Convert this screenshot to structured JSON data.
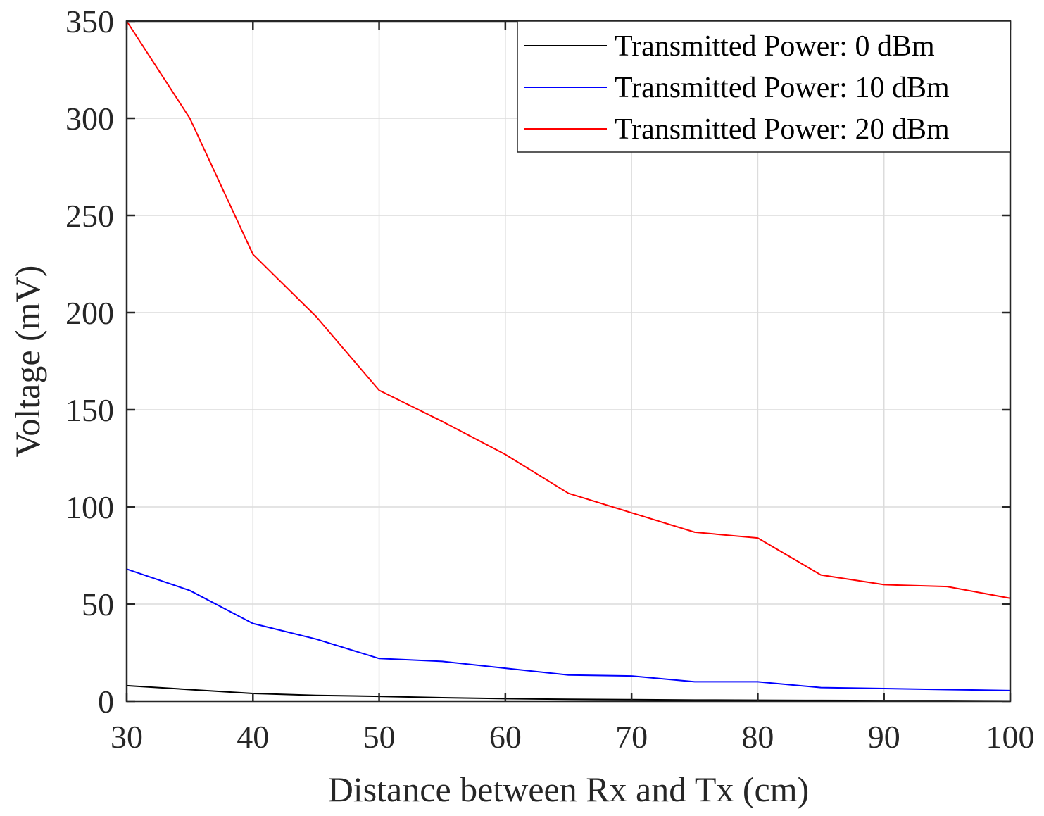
{
  "chart_data": {
    "type": "line",
    "title": "",
    "xlabel": "Distance between Rx and Tx (cm)",
    "ylabel": "Voltage (mV)",
    "xlim": [
      30,
      100
    ],
    "ylim": [
      0,
      350
    ],
    "xticks": [
      30,
      40,
      50,
      60,
      70,
      80,
      90,
      100
    ],
    "yticks": [
      0,
      50,
      100,
      150,
      200,
      250,
      300,
      350
    ],
    "grid": true,
    "legend_position": "top-right",
    "x": [
      30,
      35,
      40,
      45,
      50,
      55,
      60,
      65,
      70,
      75,
      80,
      85,
      90,
      95,
      100
    ],
    "series": [
      {
        "name": "Transmitted Power: 0 dBm",
        "color": "#000000",
        "values": [
          8,
          6,
          4,
          3,
          2.5,
          1.8,
          1.3,
          1,
          0.8,
          0.6,
          0.5,
          0.4,
          0.3,
          0.3,
          0.2
        ]
      },
      {
        "name": "Transmitted Power: 10 dBm",
        "color": "#0000ff",
        "values": [
          68,
          57,
          40,
          32,
          22,
          20.5,
          17,
          13.5,
          13,
          10,
          10,
          7,
          6.5,
          6,
          5.5
        ]
      },
      {
        "name": "Transmitted Power: 20 dBm",
        "color": "#ff0000",
        "values": [
          350,
          300,
          230,
          198,
          160,
          144,
          127,
          107,
          97,
          87,
          84,
          65,
          60,
          59,
          53
        ]
      }
    ]
  }
}
